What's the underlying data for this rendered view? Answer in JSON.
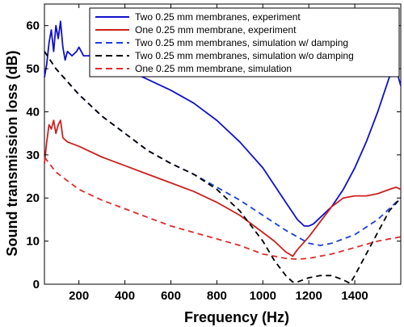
{
  "chart_data": {
    "type": "line",
    "title": "",
    "xlabel": "Frequency (Hz)",
    "ylabel": "Sound transmission loss (dB)",
    "xlim": [
      50,
      1600
    ],
    "ylim": [
      0,
      65
    ],
    "xticks": [
      200,
      400,
      600,
      800,
      1000,
      1200,
      1400
    ],
    "yticks": [
      0,
      10,
      20,
      30,
      40,
      50,
      60
    ],
    "grid": false,
    "legend_position": "top-right",
    "series": [
      {
        "name": "Two 0.25 mm membranes, experiment",
        "color": "#1010cc",
        "style": "solid",
        "x": [
          50,
          60,
          70,
          80,
          90,
          100,
          110,
          120,
          130,
          140,
          150,
          170,
          190,
          200,
          220,
          250,
          300,
          400,
          500,
          600,
          700,
          800,
          900,
          1000,
          1050,
          1100,
          1150,
          1180,
          1200,
          1220,
          1250,
          1300,
          1350,
          1400,
          1450,
          1500,
          1550,
          1580,
          1600
        ],
        "y": [
          48,
          51,
          56,
          59,
          54,
          60,
          57,
          61,
          55,
          52,
          54,
          53,
          54,
          55,
          53,
          53,
          52,
          50,
          47.5,
          45,
          42,
          38,
          33,
          27,
          23,
          19,
          15,
          13.5,
          13.5,
          14,
          15.5,
          18,
          22,
          27,
          33,
          40,
          48,
          50,
          46
        ]
      },
      {
        "name": "One 0.25 mm membrane, experiment",
        "color": "#cc2020",
        "style": "solid",
        "x": [
          50,
          60,
          70,
          80,
          90,
          100,
          110,
          120,
          130,
          150,
          200,
          300,
          400,
          500,
          600,
          700,
          800,
          900,
          1000,
          1050,
          1100,
          1130,
          1150,
          1200,
          1250,
          1300,
          1350,
          1400,
          1450,
          1500,
          1550,
          1580,
          1600
        ],
        "y": [
          28,
          33,
          37,
          36,
          38,
          35,
          37,
          38,
          34,
          33,
          32,
          29.5,
          27.5,
          25.5,
          23.5,
          21.5,
          19,
          16,
          12,
          10,
          7.5,
          6.5,
          8,
          11,
          14.5,
          18,
          20,
          20.5,
          20.5,
          21,
          22,
          22.5,
          22
        ]
      },
      {
        "name": "Two 0.25 mm membranes, simulation w/ damping",
        "color": "#1a3fe0",
        "style": "dashed",
        "x": [
          50,
          100,
          200,
          300,
          400,
          500,
          600,
          700,
          800,
          900,
          1000,
          1100,
          1200,
          1250,
          1300,
          1400,
          1500,
          1600
        ],
        "y": [
          54,
          50,
          44,
          39,
          35,
          31,
          28,
          25.5,
          22.5,
          19.5,
          16,
          12.5,
          9.5,
          9,
          9.5,
          11.5,
          15,
          20
        ]
      },
      {
        "name": "Two 0.25 mm membranes, simulation w/o damping",
        "color": "#000000",
        "style": "dashed",
        "x": [
          50,
          100,
          200,
          300,
          400,
          500,
          600,
          700,
          800,
          900,
          1000,
          1050,
          1100,
          1130,
          1150,
          1200,
          1250,
          1300,
          1350,
          1380,
          1400,
          1450,
          1500,
          1550,
          1600
        ],
        "y": [
          54,
          50,
          44,
          39,
          35,
          31,
          28,
          25.5,
          22,
          17,
          10,
          5.5,
          2,
          0.5,
          0.5,
          1.5,
          2,
          2,
          1,
          0.2,
          2,
          7,
          12,
          17,
          20
        ]
      },
      {
        "name": "One 0.25 mm membrane, simulation",
        "color": "#dd2a2a",
        "style": "dashed",
        "x": [
          50,
          100,
          200,
          300,
          400,
          500,
          600,
          700,
          800,
          900,
          1000,
          1100,
          1150,
          1200,
          1300,
          1400,
          1500,
          1600
        ],
        "y": [
          29.5,
          26,
          22,
          19.5,
          17.5,
          15.5,
          13.5,
          12,
          10.5,
          9,
          7,
          6,
          5.8,
          6,
          7,
          8.5,
          10,
          11
        ]
      }
    ]
  }
}
